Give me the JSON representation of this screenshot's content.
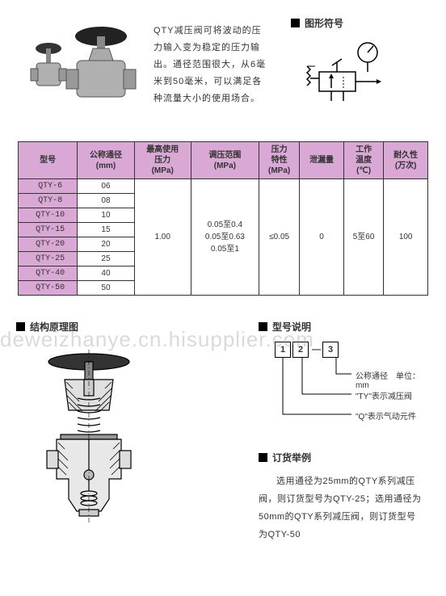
{
  "description": "QTY减压阀可将波动的压力输入变为稳定的压力输出。通径范围很大，从6毫米到50毫米，可以满足各种流量大小的使用场合。",
  "watermark": "deweizhanye.cn.hisupplier.com",
  "sections": {
    "symbol": "图形符号",
    "structure": "结构原理图",
    "modelExpl": "型号说明",
    "orderExample": "订货举例"
  },
  "table": {
    "headers": [
      "型号",
      "公称通径\n(mm)",
      "最高使用\n压力\n(MPa)",
      "调压范围\n(MPa)",
      "压力\n特性\n(MPa)",
      "泄漏量",
      "工作\n温度\n(℃)",
      "耐久性\n(万次)"
    ],
    "rows": [
      {
        "model": "QTY-6",
        "dia": "06"
      },
      {
        "model": "QTY-8",
        "dia": "08"
      },
      {
        "model": "QTY-10",
        "dia": "10"
      },
      {
        "model": "QTY-15",
        "dia": "15"
      },
      {
        "model": "QTY-20",
        "dia": "20"
      },
      {
        "model": "QTY-25",
        "dia": "25"
      },
      {
        "model": "QTY-40",
        "dia": "40"
      },
      {
        "model": "QTY-50",
        "dia": "50"
      }
    ],
    "merged": {
      "maxPressure": "1.00",
      "range": "0.05至0.4\n0.05至0.63\n0.05至1",
      "pressureChar": "≤0.05",
      "leak": "0",
      "temp": "5至60",
      "durability": "100"
    }
  },
  "modelBoxes": [
    "1",
    "2",
    "3"
  ],
  "modelExplain": {
    "l1": "公称通径　单位：mm",
    "l2": "\"TY\"表示减压阀",
    "l3": "\"Q\"表示气动元件"
  },
  "orderText": "选用通径为25mm的QTY系列减压阀，则订货型号为QTY-25；选用通径为50mm的QTY系列减压阀，则订货型号为QTY-50"
}
